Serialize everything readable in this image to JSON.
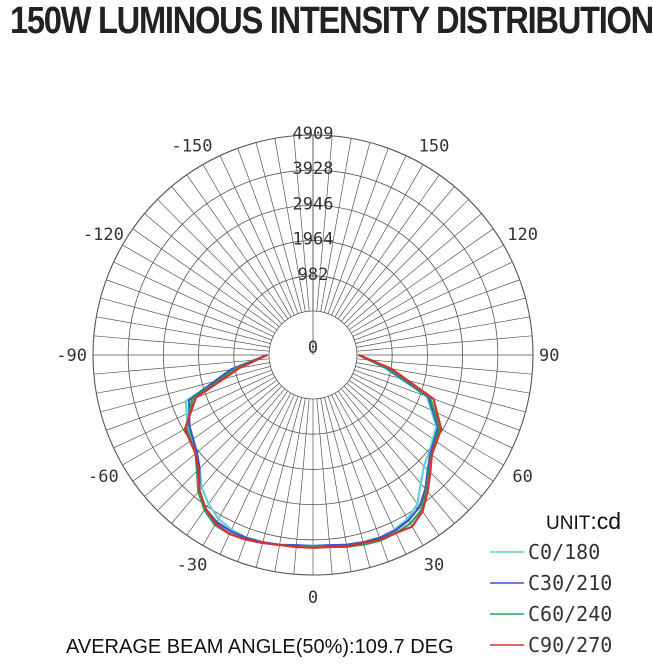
{
  "chart_data": {
    "type": "polar-line",
    "title": "150W LUMINOUS INTENSITY DISTRIBUTION",
    "unit_label": "UNIT",
    "unit_value": ":cd",
    "footer": "AVERAGE BEAM ANGLE(50%):109.7 DEG",
    "radial_ticks": [
      0,
      982,
      1964,
      2946,
      3928,
      4909
    ],
    "radial_tick_labels": [
      "0",
      "982",
      "1964",
      "2946",
      "3928",
      "4909"
    ],
    "r_max": 4909,
    "angle_labels": [
      {
        "angle": 0,
        "text": "0"
      },
      {
        "angle": 30,
        "text": "30"
      },
      {
        "angle": -30,
        "text": "-30"
      },
      {
        "angle": 60,
        "text": "60"
      },
      {
        "angle": -60,
        "text": "-60"
      },
      {
        "angle": 90,
        "text": "90"
      },
      {
        "angle": -90,
        "text": "-90"
      },
      {
        "angle": 120,
        "text": "120"
      },
      {
        "angle": -120,
        "text": "-120"
      },
      {
        "angle": 150,
        "text": "150"
      },
      {
        "angle": -150,
        "text": "-150"
      }
    ],
    "angles": [
      -90,
      -80,
      -70,
      -60,
      -50,
      -45,
      -40,
      -35,
      -30,
      -25,
      -20,
      -15,
      -10,
      -5,
      0,
      5,
      10,
      15,
      20,
      25,
      30,
      35,
      40,
      45,
      50,
      60,
      70,
      80,
      90
    ],
    "series": [
      {
        "name": "C0/180",
        "color": "#5fd1d1",
        "values": [
          50,
          1000,
          2550,
          2800,
          3000,
          3250,
          3600,
          3850,
          4050,
          4150,
          4200,
          4180,
          4150,
          4100,
          4100,
          4100,
          4150,
          4180,
          4200,
          4150,
          4050,
          3850,
          3450,
          3150,
          3000,
          2750,
          2150,
          800,
          50
        ]
      },
      {
        "name": "C30/210",
        "color": "#3a55c8",
        "values": [
          50,
          1100,
          2450,
          2750,
          3000,
          3250,
          3700,
          4000,
          4150,
          4200,
          4200,
          4180,
          4150,
          4100,
          4100,
          4100,
          4150,
          4180,
          4200,
          4180,
          4100,
          3950,
          3650,
          3300,
          3050,
          2800,
          2200,
          850,
          50
        ]
      },
      {
        "name": "C60/240",
        "color": "#22a35a",
        "values": [
          50,
          950,
          2350,
          2850,
          3050,
          3350,
          3750,
          4050,
          4250,
          4280,
          4250,
          4200,
          4150,
          4150,
          4100,
          4150,
          4200,
          4250,
          4280,
          4250,
          4200,
          4050,
          3700,
          3350,
          3100,
          2850,
          2250,
          900,
          50
        ]
      },
      {
        "name": "C90/270",
        "color": "#d93030",
        "values": [
          50,
          850,
          2250,
          2900,
          3050,
          3300,
          3700,
          4000,
          4200,
          4280,
          4250,
          4200,
          4150,
          4150,
          4150,
          4150,
          4200,
          4200,
          4250,
          4250,
          4300,
          4100,
          3750,
          3400,
          3100,
          2900,
          2350,
          1000,
          50
        ]
      }
    ],
    "grid": true,
    "legend_position": "bottom-right"
  }
}
